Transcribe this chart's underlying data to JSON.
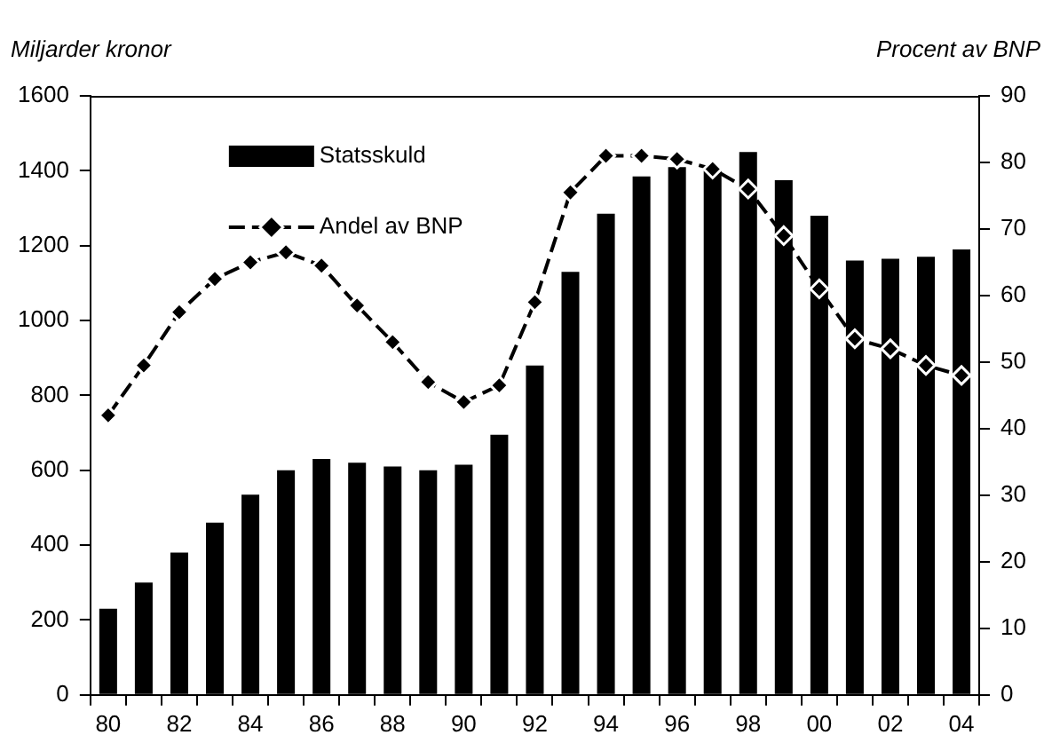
{
  "chart_data": {
    "type": "bar",
    "ylabel": "Miljarder kronor",
    "y2label": "Procent av BNP",
    "categories": [
      "80",
      null,
      "82",
      null,
      "84",
      null,
      "86",
      null,
      "88",
      null,
      "90",
      null,
      "92",
      null,
      "94",
      null,
      "96",
      null,
      "98",
      null,
      "00",
      null,
      "02",
      null,
      "04"
    ],
    "series": [
      {
        "name": "Statsskuld",
        "type": "bar",
        "color": "#000000",
        "values": [
          230,
          300,
          380,
          460,
          535,
          600,
          630,
          620,
          610,
          600,
          615,
          695,
          880,
          1130,
          1285,
          1385,
          1410,
          1400,
          1450,
          1375,
          1280,
          1160,
          1165,
          1170,
          1190
        ]
      },
      {
        "name": "Andel av BNP",
        "type": "line",
        "axis": "y2",
        "color": "#000000",
        "marker": "diamond",
        "line_style": "dashed",
        "values": [
          42,
          49.5,
          57.5,
          62.5,
          65,
          66.5,
          64.5,
          58.5,
          53,
          47,
          44,
          46.5,
          59,
          75.5,
          81,
          81,
          80.5,
          79,
          76,
          69,
          61,
          53.5,
          52,
          49.5,
          48
        ]
      }
    ],
    "ylim": [
      0,
      1600
    ],
    "yticks": [
      0,
      200,
      400,
      600,
      800,
      1000,
      1200,
      1400,
      1600
    ],
    "y2lim": [
      0,
      90
    ],
    "y2ticks": [
      0,
      10,
      20,
      30,
      40,
      50,
      60,
      70,
      80,
      90
    ],
    "grid": false,
    "legend": "top left"
  }
}
